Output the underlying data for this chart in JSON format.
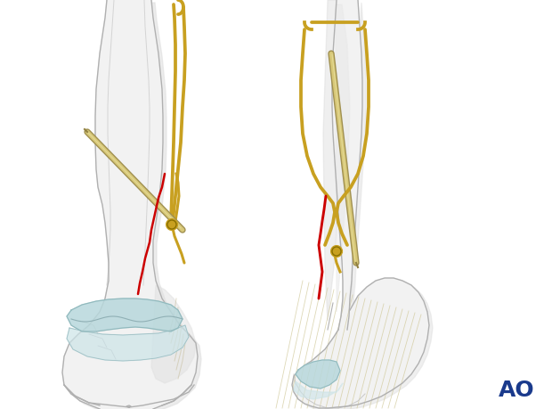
{
  "bg_color": "#ffffff",
  "bone_outline_color": "#b0b0b0",
  "bone_fill_color": "#f2f2f2",
  "bone_fill2": "#e8e8e8",
  "cartilage_color": "#b8d8dc",
  "cartilage_color2": "#cce4e8",
  "wire_color": "#c8a020",
  "pin_color": "#d8c878",
  "pin_shadow": "#b8a858",
  "fracture_color": "#cc0000",
  "shadow_color": "#d4d4d4",
  "tissue_color": "#ddd8c0",
  "ao_color": "#1a3a8c",
  "ao_text": "AO",
  "figsize": [
    6.2,
    4.59
  ],
  "dpi": 100
}
